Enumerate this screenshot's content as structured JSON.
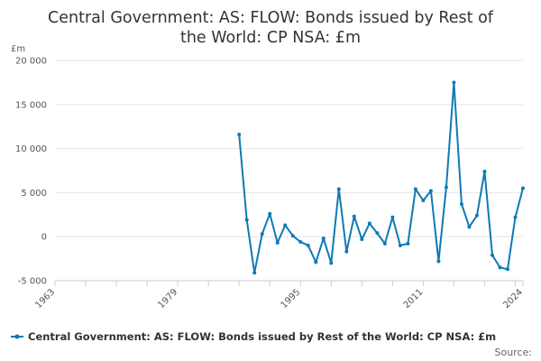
{
  "chart_data": {
    "type": "line",
    "title": "Central Government: AS: FLOW: Bonds issued by Rest of the World: CP NSA: £m",
    "title_lines": [
      "Central Government: AS: FLOW: Bonds issued by Rest of",
      "the World: CP NSA: £m"
    ],
    "ylabel": "£m",
    "xlabel": "",
    "xlim": [
      1963,
      2024
    ],
    "ylim": [
      -5000,
      20000
    ],
    "yticks": [
      20000,
      15000,
      10000,
      5000,
      0,
      -5000
    ],
    "ytick_labels": [
      "20 000",
      "15 000",
      "10 000",
      "5 000",
      "0",
      "-5 000"
    ],
    "xticks": [
      1963,
      1979,
      1995,
      2011,
      2024
    ],
    "grid": true,
    "legend_position": "bottom",
    "source_label": "Source:",
    "color": "#0f7ab4",
    "series": [
      {
        "name": "Central Government: AS: FLOW: Bonds issued by Rest of the World: CP NSA: £m",
        "x": [
          1987,
          1988,
          1989,
          1990,
          1991,
          1992,
          1993,
          1994,
          1995,
          1996,
          1997,
          1998,
          1999,
          2000,
          2001,
          2002,
          2003,
          2004,
          2005,
          2006,
          2007,
          2008,
          2009,
          2010,
          2011,
          2012,
          2013,
          2014,
          2015,
          2016,
          2017,
          2018,
          2019,
          2020,
          2021,
          2022,
          2023,
          2024
        ],
        "values": [
          11600,
          1900,
          -4100,
          300,
          2600,
          -700,
          1300,
          100,
          -600,
          -1000,
          -2900,
          -200,
          -3000,
          5400,
          -1700,
          2300,
          -300,
          1500,
          400,
          -800,
          2200,
          -1000,
          -800,
          5400,
          4100,
          5200,
          -2800,
          5600,
          17500,
          3700,
          1100,
          2400,
          7400,
          -2100,
          -3500,
          -3700,
          2200,
          5500
        ]
      }
    ]
  }
}
